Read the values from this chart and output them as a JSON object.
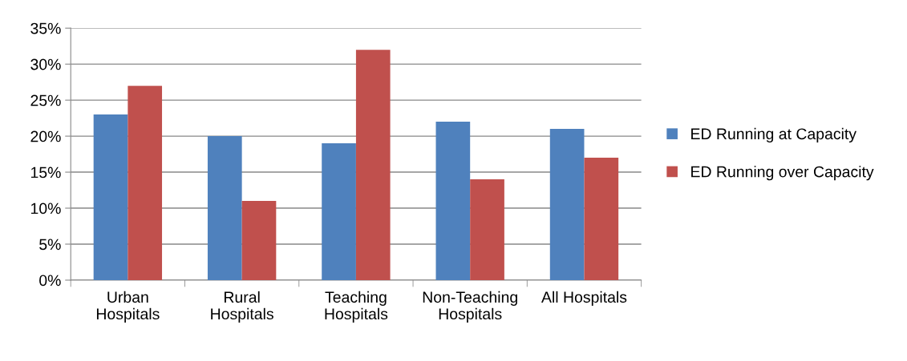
{
  "chart_data": {
    "type": "bar",
    "categories": [
      "Urban\nHospitals",
      "Rural\nHospitals",
      "Teaching\nHospitals",
      "Non-Teaching\nHospitals",
      "All Hospitals"
    ],
    "series": [
      {
        "name": "ED Running at Capacity",
        "color": "#4f81bd",
        "values": [
          23,
          20,
          19,
          22,
          21
        ]
      },
      {
        "name": "ED Running over Capacity",
        "color": "#c0504d",
        "values": [
          27,
          11,
          32,
          14,
          17
        ]
      }
    ],
    "ylim": [
      0,
      35
    ],
    "yticks": [
      {
        "value": 0,
        "label": "0%"
      },
      {
        "value": 5,
        "label": "5%"
      },
      {
        "value": 10,
        "label": "10%"
      },
      {
        "value": 15,
        "label": "15%"
      },
      {
        "value": 20,
        "label": "20%"
      },
      {
        "value": 25,
        "label": "25%"
      },
      {
        "value": 30,
        "label": "30%"
      },
      {
        "value": 35,
        "label": "35%"
      }
    ],
    "grid": "y",
    "legend": "right"
  }
}
